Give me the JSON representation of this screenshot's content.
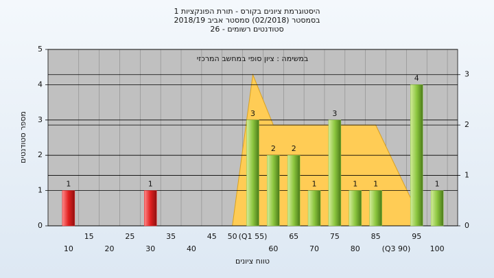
{
  "chart_data": {
    "type": "bar",
    "title_lines": [
      "היסטוגרמת ציונים בקורס - תורת הפונקציות 1",
      "בסמסטר  (02/2018)  סמסטר אביב 2018/19",
      "סטודנטים רשומים - 26"
    ],
    "annotation": "במשימה : ציון סופי במחשב המרכזי",
    "y_label": "מספר סטודנטים",
    "x_label": "טווח ציונים",
    "categories": [
      "10",
      "15",
      "20",
      "25",
      "30",
      "35",
      "40",
      "45",
      "50",
      "(Q1 55)",
      "60",
      "65",
      "70",
      "75",
      "80",
      "85",
      "(Q3 90)",
      "95",
      "100"
    ],
    "values": [
      1,
      0,
      0,
      0,
      1,
      0,
      0,
      0,
      0,
      3,
      2,
      2,
      1,
      3,
      1,
      1,
      0,
      4,
      1
    ],
    "colors": [
      "#e02020",
      "#e02020",
      "#e02020",
      "#e02020",
      "#e02020",
      "#e02020",
      "#e02020",
      "#e02020",
      "#e02020",
      "#8cc63f",
      "#8cc63f",
      "#8cc63f",
      "#8cc63f",
      "#8cc63f",
      "#8cc63f",
      "#8cc63f",
      "#8cc63f",
      "#8cc63f",
      "#8cc63f"
    ],
    "ylim": [
      0,
      5
    ],
    "yticks": [
      0,
      1,
      2,
      3,
      4,
      5
    ],
    "y2lim": [
      0,
      3.5
    ],
    "y2ticks": [
      0,
      1,
      2,
      3
    ],
    "area": {
      "axis": "y2",
      "color": "#ffcc55",
      "x": [
        50,
        55,
        60,
        85,
        95
      ],
      "values": [
        0,
        3,
        2,
        2,
        0.3
      ]
    },
    "grid": true
  }
}
